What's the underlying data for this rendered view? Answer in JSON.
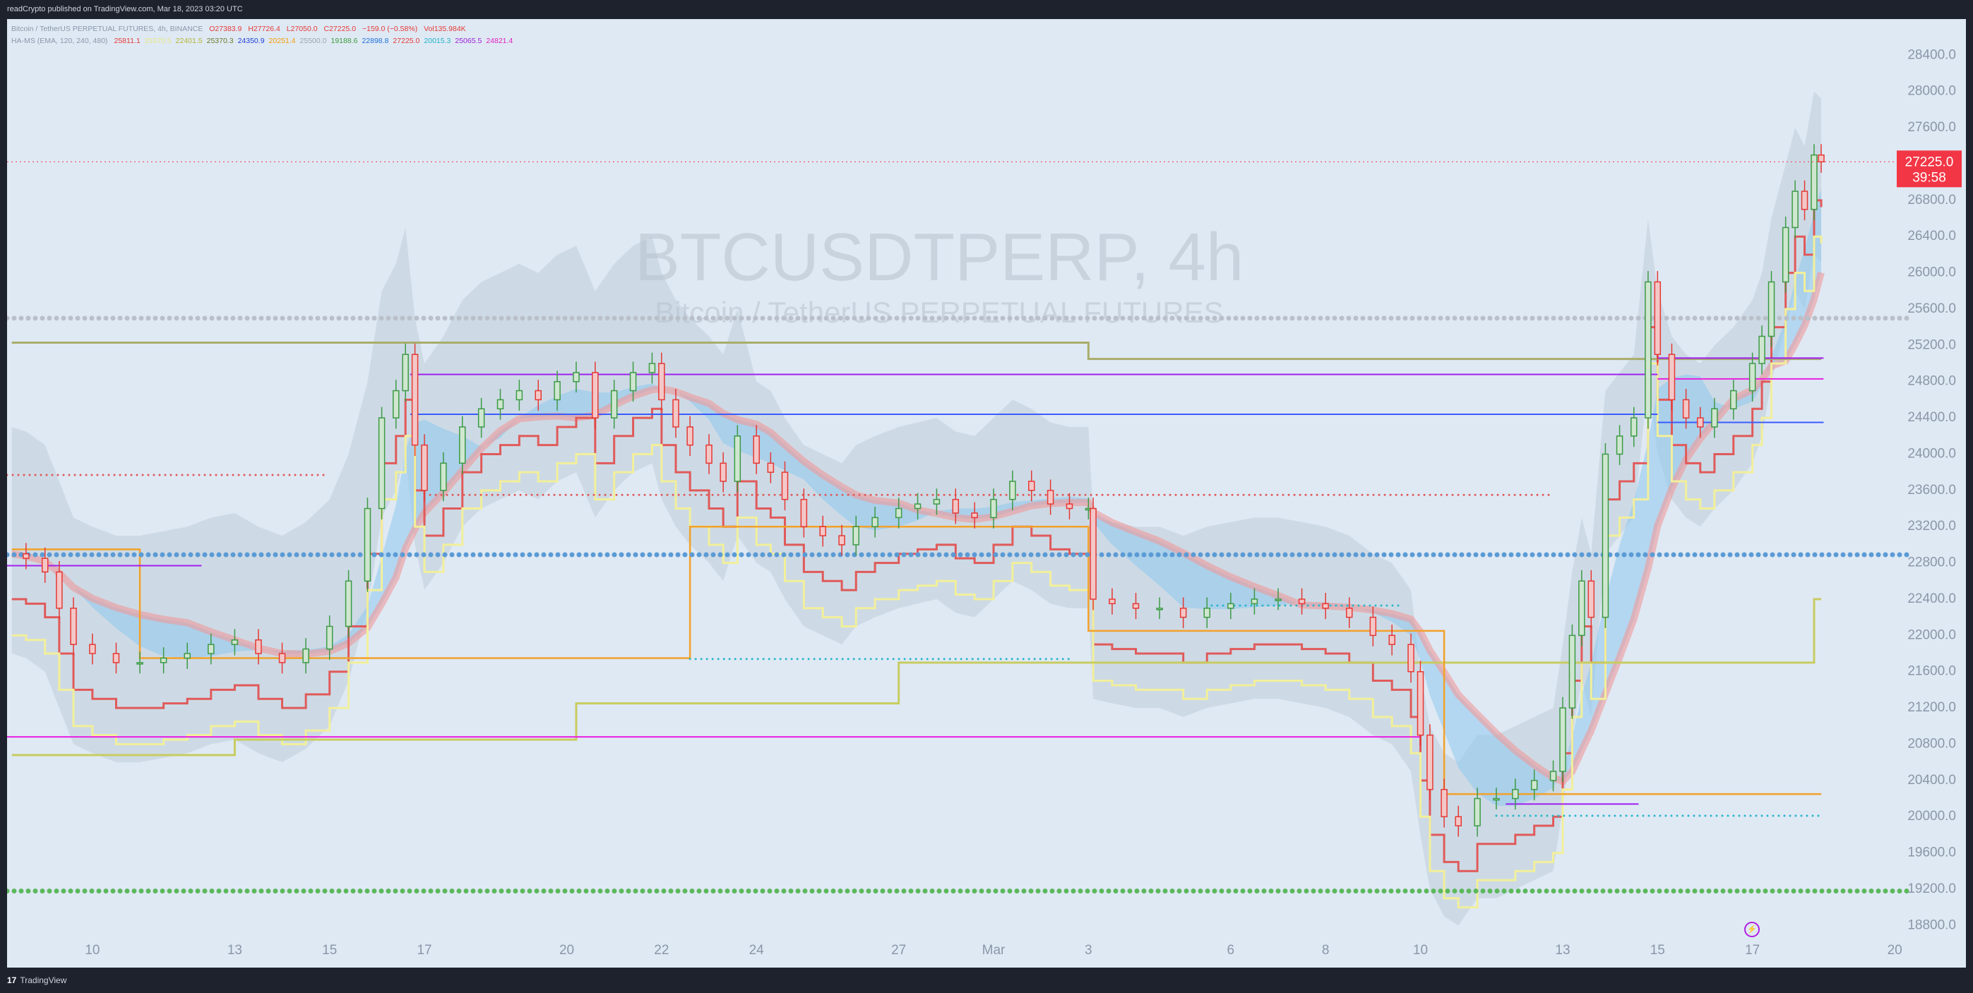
{
  "header": {
    "published_text": "readCrypto published on TradingView.com, Mar 18, 2023 03:20 UTC"
  },
  "footer": {
    "brand": "TradingView",
    "logo_mark": "17"
  },
  "legend": {
    "line1": {
      "symbol": "Bitcoin / TetherUS PERPETUAL FUTURES, 4h, BINANCE",
      "o": "O27383.9",
      "h": "H27726.4",
      "l": "L27050.0",
      "c": "C27225.0",
      "chg": "−159.0 (−0.58%)",
      "vol": "Vol135.984K"
    },
    "line2": {
      "name": "HA-MS (EMA, 120, 240, 480)",
      "values": [
        {
          "v": "25811.1",
          "color": "#e53935"
        },
        {
          "v": "25370.5",
          "color": "#e6e680"
        },
        {
          "v": "22401.5",
          "color": "#b5b52e"
        },
        {
          "v": "25370.3",
          "color": "#6b7a2a"
        },
        {
          "v": "24350.9",
          "color": "#1e3fd6"
        },
        {
          "v": "20251.4",
          "color": "#f59b00"
        },
        {
          "v": "25500.0",
          "color": "#9aa3ad"
        },
        {
          "v": "19188.6",
          "color": "#3b9b3b"
        },
        {
          "v": "22898.8",
          "color": "#1e6fd6"
        },
        {
          "v": "27225.0",
          "color": "#e53935"
        },
        {
          "v": "20015.3",
          "color": "#1fb3c9"
        },
        {
          "v": "25065.5",
          "color": "#9c1fd6"
        },
        {
          "v": "24821.4",
          "color": "#e01fbf"
        }
      ]
    }
  },
  "watermark": {
    "ticker": "BTCUSDTPERP, 4h",
    "name": "Bitcoin / TetherUS PERPETUAL FUTURES"
  },
  "price_label": {
    "price": "27225.0",
    "countdown": "39:58",
    "color": "#f23645"
  },
  "colors": {
    "bg": "#dfe9f4",
    "up_candle": "#3d9a46",
    "down_candle": "#e53935",
    "red_step": "#e05a5a",
    "yellow_step": "#f2ef9a",
    "olive_step": "#c8cc60",
    "orange_step": "#f2a12a",
    "magenta_line": "#e81fe0",
    "purple_line": "#a020f0",
    "blue_line": "#3b5bff",
    "gray_dotted": "#b9c0c9",
    "blue_dotted": "#5b9bd5",
    "green_dotted": "#5cb85c",
    "teal_dotted": "#29b6c9"
  },
  "chart_data": {
    "type": "candlestick",
    "symbol": "BTCUSDTPERP",
    "interval": "4h",
    "x_tick_labels": [
      "10",
      "13",
      "15",
      "17",
      "20",
      "22",
      "24",
      "27",
      "Mar",
      "3",
      "6",
      "8",
      "10",
      "13",
      "15",
      "17",
      "20"
    ],
    "y_tick_labels": [
      "28400.0",
      "28000.0",
      "27600.0",
      "26800.0",
      "26400.0",
      "26000.0",
      "25600.0",
      "25200.0",
      "24800.0",
      "24400.0",
      "24000.0",
      "23600.0",
      "23200.0",
      "22800.0",
      "22400.0",
      "22000.0",
      "21600.0",
      "21200.0",
      "20800.0",
      "20400.0",
      "20000.0",
      "19600.0",
      "19200.0",
      "18800.0"
    ],
    "ylim": [
      18600,
      28800
    ],
    "x_days": [
      10,
      13,
      15,
      17,
      20,
      22,
      24,
      27,
      29,
      31,
      34,
      36,
      38,
      41,
      43,
      45,
      48
    ],
    "x_range_days": [
      8.2,
      48.4
    ],
    "close_path": [
      [
        8.3,
        22900
      ],
      [
        8.6,
        22850
      ],
      [
        9.0,
        22700
      ],
      [
        9.3,
        22300
      ],
      [
        9.6,
        21900
      ],
      [
        10.0,
        21800
      ],
      [
        10.5,
        21700
      ],
      [
        11.0,
        21700
      ],
      [
        11.5,
        21750
      ],
      [
        12.0,
        21800
      ],
      [
        12.5,
        21900
      ],
      [
        13.0,
        21950
      ],
      [
        13.5,
        21800
      ],
      [
        14.0,
        21700
      ],
      [
        14.5,
        21850
      ],
      [
        15.0,
        22100
      ],
      [
        15.4,
        22600
      ],
      [
        15.8,
        23400
      ],
      [
        16.1,
        24400
      ],
      [
        16.4,
        24700
      ],
      [
        16.6,
        25100
      ],
      [
        16.8,
        24100
      ],
      [
        17.0,
        23600
      ],
      [
        17.4,
        23900
      ],
      [
        17.8,
        24300
      ],
      [
        18.2,
        24500
      ],
      [
        18.6,
        24600
      ],
      [
        19.0,
        24700
      ],
      [
        19.4,
        24600
      ],
      [
        19.8,
        24800
      ],
      [
        20.2,
        24900
      ],
      [
        20.6,
        24400
      ],
      [
        21.0,
        24700
      ],
      [
        21.4,
        24900
      ],
      [
        21.8,
        25000
      ],
      [
        22.0,
        24600
      ],
      [
        22.3,
        24300
      ],
      [
        22.6,
        24100
      ],
      [
        23.0,
        23900
      ],
      [
        23.3,
        23700
      ],
      [
        23.6,
        24200
      ],
      [
        24.0,
        23900
      ],
      [
        24.3,
        23800
      ],
      [
        24.6,
        23500
      ],
      [
        25.0,
        23200
      ],
      [
        25.4,
        23100
      ],
      [
        25.8,
        23000
      ],
      [
        26.1,
        23200
      ],
      [
        26.5,
        23300
      ],
      [
        27.0,
        23400
      ],
      [
        27.4,
        23450
      ],
      [
        27.8,
        23500
      ],
      [
        28.2,
        23350
      ],
      [
        28.6,
        23300
      ],
      [
        29.0,
        23500
      ],
      [
        29.4,
        23700
      ],
      [
        29.8,
        23600
      ],
      [
        30.2,
        23450
      ],
      [
        30.6,
        23400
      ],
      [
        31.0,
        23400
      ],
      [
        31.1,
        22400
      ],
      [
        31.5,
        22350
      ],
      [
        32.0,
        22300
      ],
      [
        32.5,
        22300
      ],
      [
        33.0,
        22200
      ],
      [
        33.5,
        22300
      ],
      [
        34.0,
        22350
      ],
      [
        34.5,
        22400
      ],
      [
        35.0,
        22400
      ],
      [
        35.5,
        22350
      ],
      [
        36.0,
        22300
      ],
      [
        36.5,
        22200
      ],
      [
        37.0,
        22000
      ],
      [
        37.4,
        21900
      ],
      [
        37.8,
        21600
      ],
      [
        38.0,
        20900
      ],
      [
        38.2,
        20300
      ],
      [
        38.5,
        20000
      ],
      [
        38.8,
        19900
      ],
      [
        39.2,
        20200
      ],
      [
        39.6,
        20200
      ],
      [
        40.0,
        20300
      ],
      [
        40.4,
        20400
      ],
      [
        40.8,
        20500
      ],
      [
        41.0,
        21200
      ],
      [
        41.2,
        22000
      ],
      [
        41.4,
        22600
      ],
      [
        41.6,
        22200
      ],
      [
        41.9,
        24000
      ],
      [
        42.2,
        24200
      ],
      [
        42.5,
        24400
      ],
      [
        42.8,
        25900
      ],
      [
        43.0,
        25100
      ],
      [
        43.3,
        24600
      ],
      [
        43.6,
        24400
      ],
      [
        43.9,
        24300
      ],
      [
        44.2,
        24500
      ],
      [
        44.6,
        24700
      ],
      [
        45.0,
        25000
      ],
      [
        45.2,
        25300
      ],
      [
        45.4,
        25900
      ],
      [
        45.7,
        26500
      ],
      [
        45.9,
        26900
      ],
      [
        46.1,
        26700
      ],
      [
        46.3,
        27300
      ],
      [
        46.45,
        27225
      ]
    ],
    "horizontal_levels": [
      {
        "price": 25500,
        "style": "dotted",
        "color": "#b9c0c9",
        "from": 8.2,
        "to": 48.4
      },
      {
        "price": 22890,
        "style": "dotted",
        "color": "#5b9bd5",
        "from": 8.2,
        "to": 48.4
      },
      {
        "price": 19180,
        "style": "dotted",
        "color": "#5cb85c",
        "from": 8.2,
        "to": 48.4
      },
      {
        "price": 23770,
        "style": "dotted",
        "color": "#e05a5a",
        "from": 8.2,
        "to": 14.9
      },
      {
        "price": 23550,
        "style": "dotted",
        "color": "#e05a5a",
        "from": 17.0,
        "to": 40.8
      },
      {
        "price": 21740,
        "style": "dotted",
        "color": "#29b6c9",
        "from": 22.6,
        "to": 30.6
      },
      {
        "price": 22330,
        "style": "dotted",
        "color": "#29b6c9",
        "from": 33.6,
        "to": 37.6
      },
      {
        "price": 20010,
        "style": "dotted",
        "color": "#29b6c9",
        "from": 39.6,
        "to": 46.5
      },
      {
        "price": 20880,
        "style": "solid",
        "color": "#e81fe0",
        "from": 8.2,
        "to": 38.0
      },
      {
        "price": 24880,
        "style": "solid",
        "color": "#a020f0",
        "from": 16.7,
        "to": 43.0
      },
      {
        "price": 25060,
        "style": "solid",
        "color": "#a020f0",
        "from": 43.0,
        "to": 46.5
      },
      {
        "price": 24830,
        "style": "solid",
        "color": "#e81fe0",
        "from": 43.0,
        "to": 46.5
      },
      {
        "price": 22770,
        "style": "solid",
        "color": "#a020f0",
        "from": 8.2,
        "to": 12.3
      },
      {
        "price": 24440,
        "style": "solid",
        "color": "#3b5bff",
        "from": 16.7,
        "to": 43.0
      },
      {
        "price": 24350,
        "style": "solid",
        "color": "#3b5bff",
        "from": 43.0,
        "to": 46.5
      },
      {
        "price": 20140,
        "style": "solid",
        "color": "#a020f0",
        "from": 39.8,
        "to": 42.6
      }
    ]
  }
}
